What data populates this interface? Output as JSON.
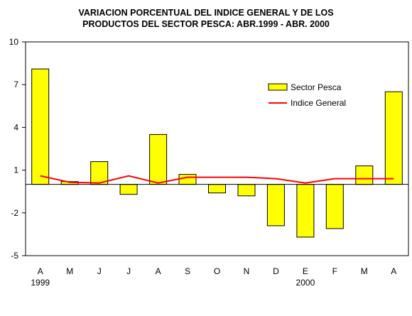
{
  "chart_data": {
    "type": "bar",
    "title_line1": "VARIACION PORCENTUAL DEL INDICE GENERAL Y DE LOS",
    "title_line2": "PRODUCTOS DEL SECTOR PESCA: ABR.1999 - ABR. 2000",
    "categories": [
      "A",
      "M",
      "J",
      "J",
      "A",
      "S",
      "O",
      "N",
      "D",
      "E",
      "F",
      "M",
      "A"
    ],
    "year_labels": [
      {
        "index": 0,
        "label": "1999"
      },
      {
        "index": 9,
        "label": "2000"
      }
    ],
    "yticks": [
      10,
      7,
      4,
      1,
      -2,
      -5
    ],
    "ylim": [
      -5,
      10
    ],
    "series": [
      {
        "name": "Sector Pesca",
        "type": "bar",
        "color": "#ffff00",
        "values": [
          8.1,
          0.2,
          1.6,
          -0.7,
          3.5,
          0.7,
          -0.6,
          -0.8,
          -2.9,
          -3.7,
          -3.1,
          1.3,
          6.5
        ]
      },
      {
        "name": "Indice General",
        "type": "line",
        "color": "#ff0000",
        "values": [
          0.6,
          0.15,
          0.1,
          0.6,
          0.1,
          0.5,
          0.5,
          0.5,
          0.4,
          0.1,
          0.4,
          0.4,
          0.4
        ]
      }
    ],
    "legend": {
      "position": "top-right"
    },
    "grid": false
  }
}
